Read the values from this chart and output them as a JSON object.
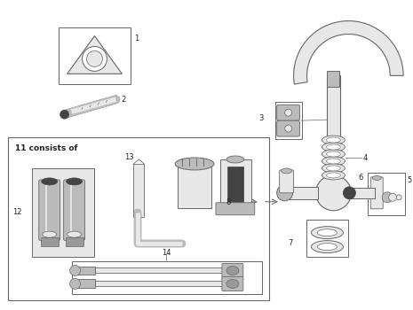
{
  "bg_color": "#ffffff",
  "line_color": "#666666",
  "part_color": "#bbbbbb",
  "dark_color": "#444444",
  "light_color": "#e8e8e8",
  "mid_color": "#999999",
  "consists_of_label": "11 consists of"
}
